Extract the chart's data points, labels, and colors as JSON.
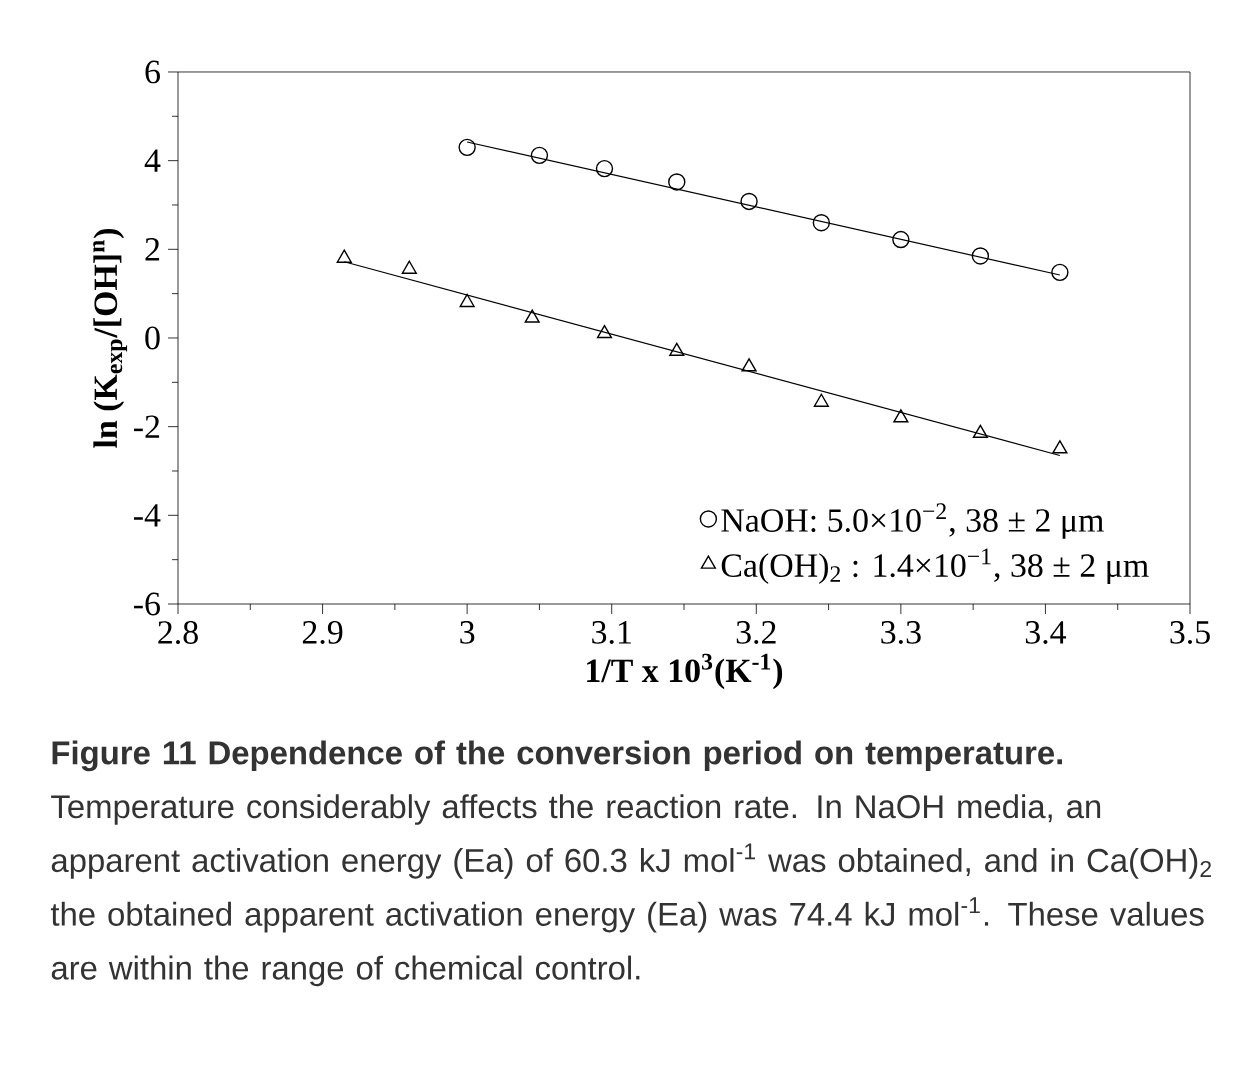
{
  "chart_data": {
    "type": "scatter",
    "xlabel": "1/T x 10$^{3}$(K$^{-1}$)",
    "ylabel": "ln (K$_{exp}$/[OH]$^{n}$)",
    "xlim": [
      2.8,
      3.5
    ],
    "xticks": [
      2.8,
      2.9,
      3,
      3.1,
      3.2,
      3.3,
      3.4,
      3.5
    ],
    "ylim": [
      -6,
      6
    ],
    "yticks": [
      -6,
      -4,
      -2,
      0,
      2,
      4,
      6
    ],
    "grid": false,
    "legend": "bottom right",
    "series": [
      {
        "name": "NaOH: 5.0×10$^{−2}$, 38 ± 2 μm",
        "marker": "circle",
        "color": "#000000",
        "x": [
          3.0,
          3.05,
          3.095,
          3.145,
          3.195,
          3.245,
          3.3,
          3.355,
          3.41
        ],
        "values": [
          4.3,
          4.12,
          3.82,
          3.52,
          3.08,
          2.6,
          2.22,
          1.85,
          1.48
        ]
      },
      {
        "name": "Ca(OH)$_{2}$ : 1.4×10$^{−1}$, 38 ± 2 μm",
        "marker": "triangle",
        "color": "#000000",
        "x": [
          2.915,
          2.96,
          3.0,
          3.045,
          3.095,
          3.145,
          3.195,
          3.245,
          3.3,
          3.355,
          3.41
        ],
        "values": [
          1.8,
          1.55,
          0.8,
          0.45,
          0.1,
          -0.3,
          -0.65,
          -1.45,
          -1.8,
          -2.15,
          -2.5
        ]
      },
      {
        "type": "line",
        "marker": "none",
        "color": "#000000",
        "x": [
          3.0,
          3.41
        ],
        "values": [
          4.42,
          1.42
        ]
      },
      {
        "type": "line",
        "marker": "none",
        "color": "#000000",
        "x": [
          2.915,
          3.41
        ],
        "values": [
          1.72,
          -2.65
        ]
      }
    ],
    "annotations": [
      "**Figure 11 Dependence of the conversion period on temperature.** Temperature considerably affects the reaction rate. In NaOH media, an apparent activation energy (Ea) of 60.3 kJ mol$^{-1}$ was obtained, and in Ca(OH)$_{2}$ the obtained apparent activation energy (Ea) was 74.4 kJ mol$^{-1}$. These values are within the range of chemical control."
    ]
  }
}
